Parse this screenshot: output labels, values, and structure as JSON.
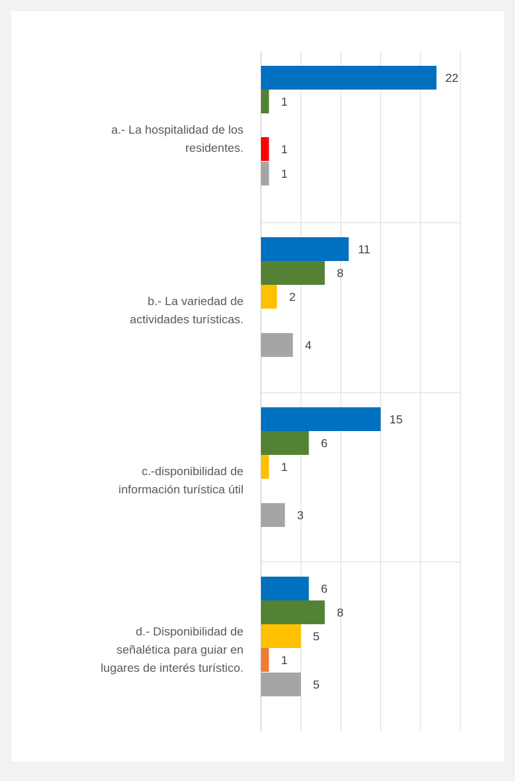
{
  "chart_data": {
    "type": "bar",
    "orientation": "horizontal",
    "title": "",
    "xlabel": "",
    "ylabel": "",
    "xlim": [
      0,
      25
    ],
    "grid": true,
    "legend": "none",
    "categories": [
      {
        "label_lines": [
          "a.- La hospitalidad de los",
          "residentes."
        ],
        "bars": [
          {
            "value": 22,
            "color": "#0070c0"
          },
          {
            "value": 1,
            "color": "#548235"
          },
          {
            "value": null,
            "color": "#ffc000"
          },
          {
            "value": 1,
            "color": "#ff0000"
          },
          {
            "value": 1,
            "color": "#a5a5a5"
          }
        ]
      },
      {
        "label_lines": [
          "b.- La variedad de",
          "actividades turísticas."
        ],
        "bars": [
          {
            "value": 11,
            "color": "#0070c0"
          },
          {
            "value": 8,
            "color": "#548235"
          },
          {
            "value": 2,
            "color": "#ffc000"
          },
          {
            "value": null,
            "color": "#ed7d31"
          },
          {
            "value": 4,
            "color": "#a5a5a5"
          }
        ]
      },
      {
        "label_lines": [
          "c.-disponibilidad de",
          "información turística útil"
        ],
        "bars": [
          {
            "value": 15,
            "color": "#0070c0"
          },
          {
            "value": 6,
            "color": "#548235"
          },
          {
            "value": 1,
            "color": "#ffc000"
          },
          {
            "value": null,
            "color": "#ed7d31"
          },
          {
            "value": 3,
            "color": "#a5a5a5"
          }
        ]
      },
      {
        "label_lines": [
          "d.- Disponibilidad de",
          "señalética para guiar en",
          "lugares de interés turístico."
        ],
        "bars": [
          {
            "value": 6,
            "color": "#0070c0"
          },
          {
            "value": 8,
            "color": "#548235"
          },
          {
            "value": 5,
            "color": "#ffc000"
          },
          {
            "value": 1,
            "color": "#ed7d31"
          },
          {
            "value": 5,
            "color": "#a5a5a5"
          }
        ]
      }
    ]
  }
}
